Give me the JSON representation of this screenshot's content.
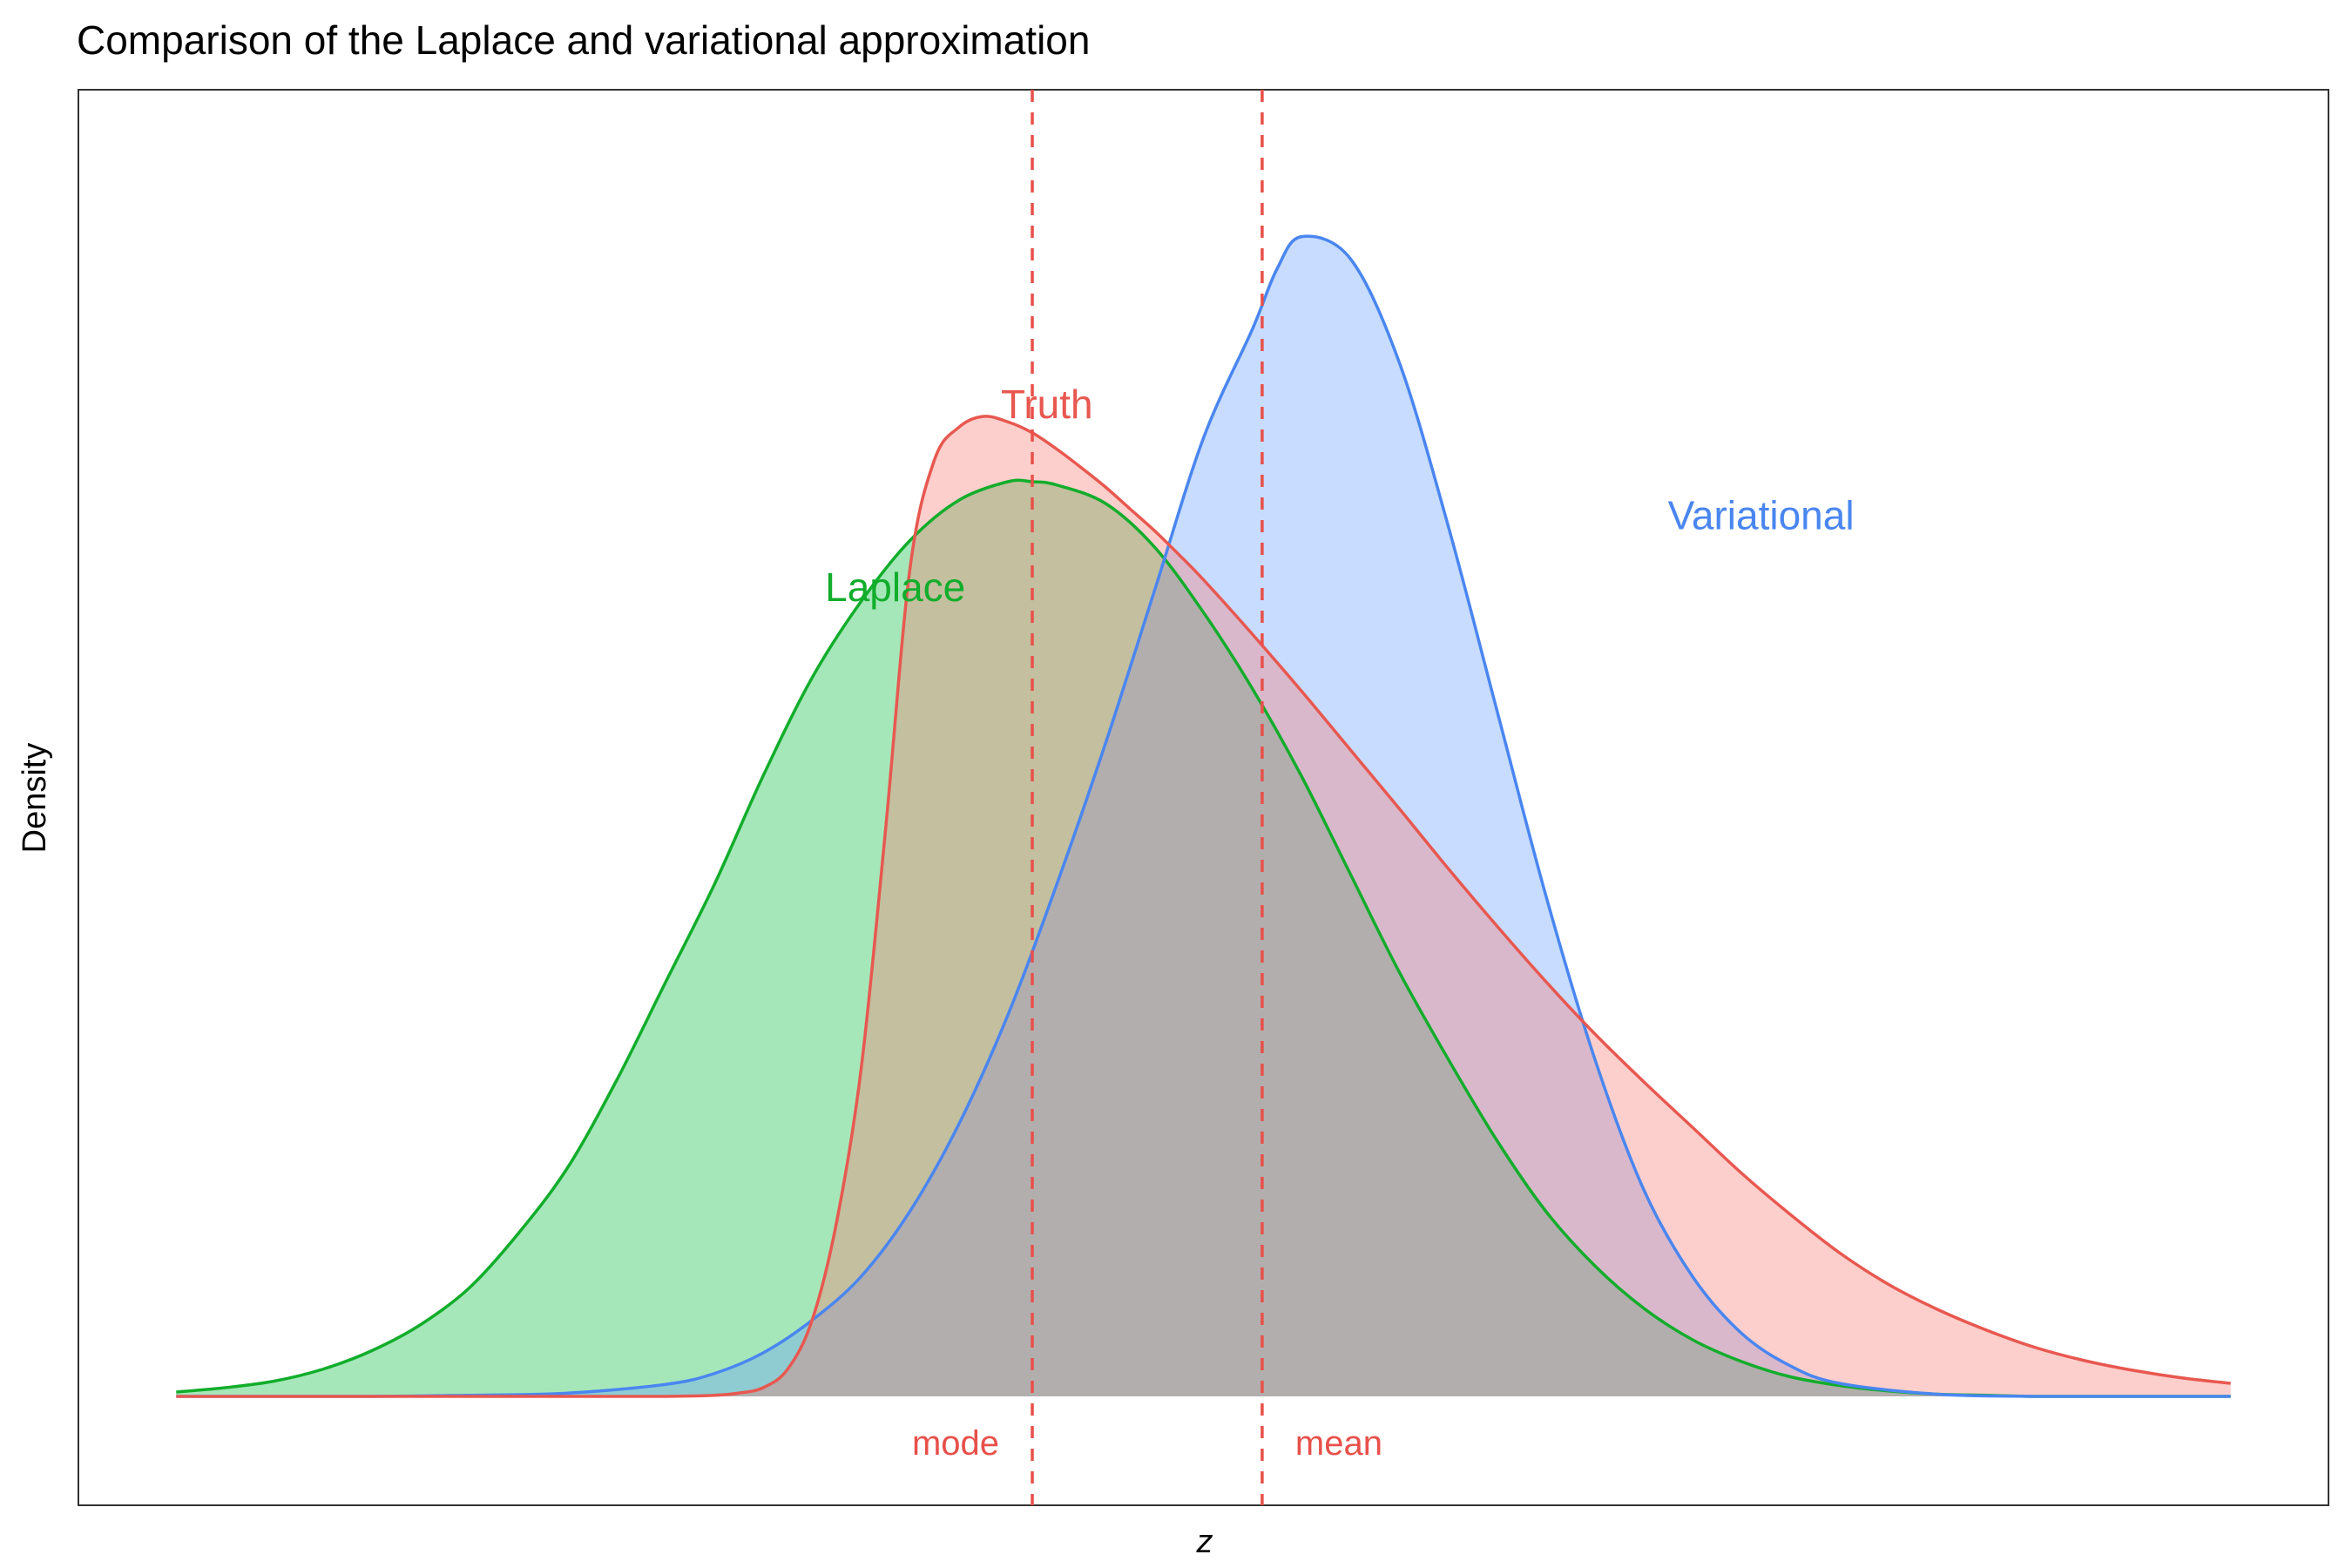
{
  "chart_data": {
    "type": "area",
    "title": "Comparison of the Laplace and variational approximation",
    "xlabel": "z",
    "ylabel": "Density",
    "xlim": [
      -0.2,
      4.4
    ],
    "ylim": [
      -0.1,
      1.2
    ],
    "grid": false,
    "legend": "none",
    "colors": {
      "truth": "#F8766D",
      "truth_line": "#E85850",
      "laplace": "#00BA38",
      "laplace_line": "#12AD2B",
      "variational": "#619CFF",
      "variational_line": "#4A86F0",
      "vline": "#E8504A"
    },
    "series": [
      {
        "name": "Truth",
        "label_x": 1.78,
        "label_y": 0.908,
        "x": [
          0.0,
          0.1,
          0.2,
          0.3,
          0.4,
          0.5,
          0.6,
          0.7,
          0.8,
          0.9,
          1.0,
          1.1,
          1.15,
          1.2,
          1.25,
          1.3,
          1.35,
          1.4,
          1.45,
          1.5,
          1.55,
          1.6,
          1.65,
          1.7,
          1.75,
          1.8,
          1.85,
          1.9,
          1.95,
          2.0,
          2.05,
          2.1,
          2.2,
          2.3,
          2.4,
          2.5,
          2.6,
          2.7,
          2.8,
          2.9,
          3.0,
          3.1,
          3.2,
          3.3,
          3.4,
          3.5,
          3.6,
          3.7,
          3.8,
          3.9,
          4.0,
          4.1,
          4.2
        ],
        "y": [
          0.0,
          0.0,
          0.0,
          0.0,
          0.0,
          0.0,
          0.0,
          0.0,
          0.0,
          0.0,
          0.0,
          0.001,
          0.003,
          0.008,
          0.025,
          0.07,
          0.16,
          0.3,
          0.52,
          0.76,
          0.86,
          0.89,
          0.9,
          0.895,
          0.885,
          0.87,
          0.853,
          0.835,
          0.815,
          0.795,
          0.773,
          0.75,
          0.7,
          0.648,
          0.594,
          0.54,
          0.485,
          0.432,
          0.381,
          0.333,
          0.289,
          0.247,
          0.205,
          0.167,
          0.132,
          0.103,
          0.08,
          0.061,
          0.045,
          0.033,
          0.024,
          0.017,
          0.012
        ]
      },
      {
        "name": "Laplace",
        "label_x": 1.47,
        "label_y": 0.74,
        "x": [
          0.0,
          0.1,
          0.2,
          0.3,
          0.4,
          0.5,
          0.6,
          0.7,
          0.8,
          0.9,
          1.0,
          1.1,
          1.2,
          1.3,
          1.4,
          1.5,
          1.6,
          1.7,
          1.75,
          1.8,
          1.9,
          2.0,
          2.1,
          2.2,
          2.3,
          2.4,
          2.5,
          2.6,
          2.7,
          2.8,
          2.9,
          3.0,
          3.1,
          3.2,
          3.3,
          3.4,
          3.5,
          3.6,
          3.7,
          3.8,
          3.9,
          4.0,
          4.1,
          4.2
        ],
        "y": [
          0.004,
          0.008,
          0.014,
          0.025,
          0.042,
          0.066,
          0.1,
          0.15,
          0.21,
          0.29,
          0.38,
          0.47,
          0.57,
          0.66,
          0.73,
          0.786,
          0.823,
          0.84,
          0.84,
          0.837,
          0.82,
          0.78,
          0.72,
          0.65,
          0.57,
          0.48,
          0.39,
          0.31,
          0.235,
          0.17,
          0.12,
          0.081,
          0.052,
          0.032,
          0.018,
          0.01,
          0.005,
          0.002,
          0.001,
          0.0,
          0.0,
          0.0,
          0.0,
          0.0
        ]
      },
      {
        "name": "Variational",
        "label_x": 3.24,
        "label_y": 0.806,
        "x": [
          0.0,
          0.2,
          0.4,
          0.6,
          0.8,
          1.0,
          1.1,
          1.2,
          1.3,
          1.4,
          1.5,
          1.6,
          1.7,
          1.8,
          1.9,
          2.0,
          2.1,
          2.2,
          2.25,
          2.3,
          2.4,
          2.5,
          2.6,
          2.7,
          2.8,
          2.9,
          3.0,
          3.1,
          3.2,
          3.3,
          3.4,
          3.6,
          3.8,
          4.0,
          4.2
        ],
        "y": [
          0.0,
          0.0,
          0.0,
          0.001,
          0.003,
          0.011,
          0.021,
          0.04,
          0.07,
          0.11,
          0.17,
          0.25,
          0.35,
          0.47,
          0.6,
          0.74,
          0.88,
          0.98,
          1.035,
          1.065,
          1.045,
          0.95,
          0.8,
          0.63,
          0.46,
          0.31,
          0.19,
          0.11,
          0.058,
          0.028,
          0.012,
          0.002,
          0.0,
          0.0,
          0.0
        ]
      }
    ],
    "vlines": [
      {
        "label": "mode",
        "x": 1.75,
        "label_side": "left"
      },
      {
        "label": "mean",
        "x": 2.22,
        "label_side": "right"
      }
    ]
  }
}
